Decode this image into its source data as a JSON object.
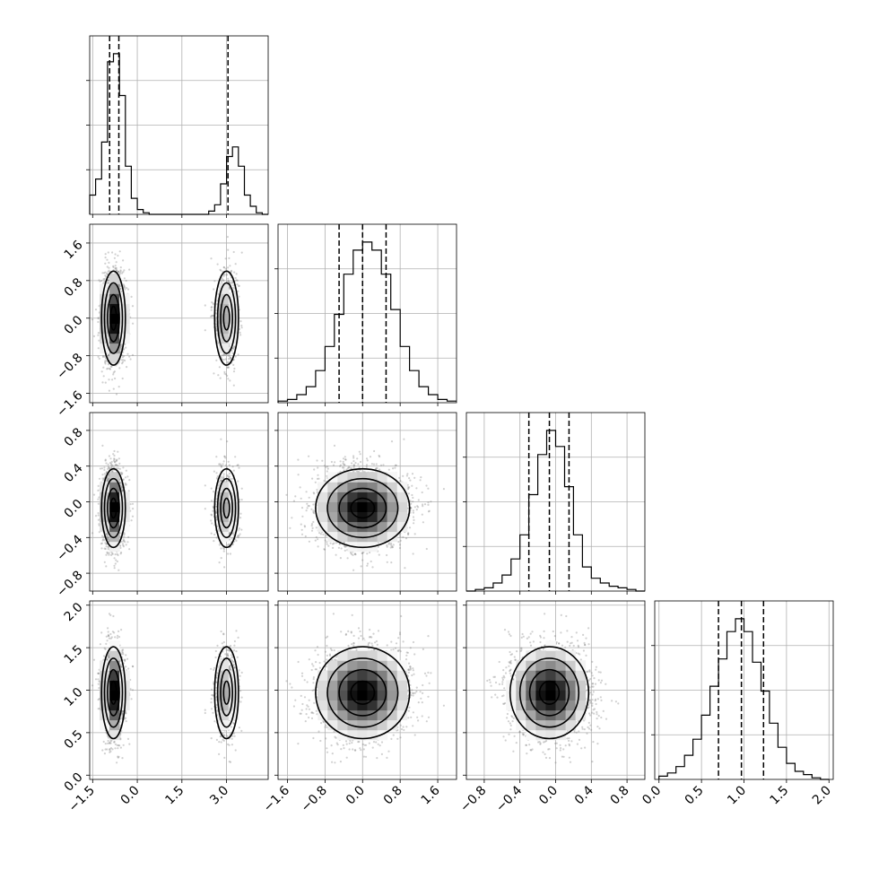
{
  "chart_data": {
    "type": "corner",
    "title": "",
    "grid": true,
    "colors": {
      "line": "#000000",
      "grid": "#b0b0b0",
      "points": "#7a7a7a",
      "density_dark": "#000000",
      "density_light": "#ffffff"
    },
    "parameters": [
      {
        "label": "",
        "range": [
          -1.6,
          4.4
        ],
        "ticks": [
          -1.5,
          0.0,
          1.5,
          3.0
        ],
        "tick_labels": [
          "−1.5",
          "0.0",
          "1.5",
          "3.0"
        ],
        "quantiles": [
          -0.93,
          -0.62,
          3.05
        ],
        "components": [
          {
            "weight": 0.7,
            "mean": -0.8,
            "sd": 0.2
          },
          {
            "weight": 0.3,
            "mean": 3.0,
            "sd": 0.2
          }
        ],
        "histogram": {
          "edges": [
            -1.6,
            -1.4,
            -1.2,
            -1.0,
            -0.8,
            -0.6,
            -0.4,
            -0.2,
            0.0,
            0.2,
            0.4,
            0.6,
            0.8,
            1.0,
            1.2,
            1.4,
            1.6,
            1.8,
            2.0,
            2.2,
            2.4,
            2.6,
            2.8,
            3.0,
            3.2,
            3.4,
            3.6,
            3.8,
            4.0,
            4.2,
            4.4
          ],
          "counts": [
            0.12,
            0.22,
            0.45,
            0.95,
            1.0,
            0.74,
            0.3,
            0.1,
            0.03,
            0.01,
            0.0,
            0.0,
            0.0,
            0.0,
            0.0,
            0.0,
            0.0,
            0.0,
            0.0,
            0.0,
            0.02,
            0.06,
            0.19,
            0.36,
            0.42,
            0.3,
            0.12,
            0.05,
            0.01,
            0.0
          ]
        }
      },
      {
        "label": "",
        "range": [
          -1.8,
          2.0
        ],
        "ticks": [
          -1.6,
          -0.8,
          0.0,
          0.8,
          1.6
        ],
        "tick_labels": [
          "−1.6",
          "−0.8",
          "0.0",
          "0.8",
          "1.6"
        ],
        "quantiles": [
          -0.5,
          0.0,
          0.5
        ],
        "components": [
          {
            "weight": 1.0,
            "mean": 0.0,
            "sd": 0.5
          }
        ],
        "histogram": {
          "edges": [
            -1.8,
            -1.6,
            -1.4,
            -1.2,
            -1.0,
            -0.8,
            -0.6,
            -0.4,
            -0.2,
            0.0,
            0.2,
            0.4,
            0.6,
            0.8,
            1.0,
            1.2,
            1.4,
            1.6,
            1.8,
            2.0
          ],
          "counts": [
            0.01,
            0.02,
            0.05,
            0.1,
            0.2,
            0.35,
            0.55,
            0.8,
            0.95,
            1.0,
            0.95,
            0.8,
            0.58,
            0.35,
            0.2,
            0.1,
            0.05,
            0.02,
            0.01
          ]
        }
      },
      {
        "label": "",
        "range": [
          -1.0,
          1.0
        ],
        "ticks": [
          -0.8,
          -0.4,
          0.0,
          0.4,
          0.8
        ],
        "tick_labels": [
          "−0.8",
          "−0.4",
          "0.0",
          "0.4",
          "0.8"
        ],
        "quantiles": [
          -0.3,
          -0.07,
          0.15
        ],
        "components": [
          {
            "weight": 1.0,
            "mean": -0.07,
            "sd": 0.22
          }
        ],
        "histogram": {
          "edges": [
            -1.0,
            -0.9,
            -0.8,
            -0.7,
            -0.6,
            -0.5,
            -0.4,
            -0.3,
            -0.2,
            -0.1,
            0.0,
            0.1,
            0.2,
            0.3,
            0.4,
            0.5,
            0.6,
            0.7,
            0.8,
            0.9,
            1.0
          ],
          "counts": [
            0.0,
            0.01,
            0.02,
            0.05,
            0.1,
            0.2,
            0.35,
            0.6,
            0.85,
            1.0,
            0.9,
            0.65,
            0.35,
            0.15,
            0.08,
            0.05,
            0.03,
            0.02,
            0.01,
            0.0
          ]
        }
      },
      {
        "label": "",
        "range": [
          -0.05,
          2.05
        ],
        "ticks": [
          0.0,
          0.5,
          1.0,
          1.5,
          2.0
        ],
        "tick_labels": [
          "0.0",
          "0.5",
          "1.0",
          "1.5",
          "2.0"
        ],
        "quantiles": [
          0.7,
          0.97,
          1.23
        ],
        "components": [
          {
            "weight": 1.0,
            "mean": 0.97,
            "sd": 0.27
          }
        ],
        "histogram": {
          "edges": [
            0.0,
            0.1,
            0.2,
            0.3,
            0.4,
            0.5,
            0.6,
            0.7,
            0.8,
            0.9,
            1.0,
            1.1,
            1.2,
            1.3,
            1.4,
            1.5,
            1.6,
            1.7,
            1.8,
            1.9,
            2.0
          ],
          "counts": [
            0.02,
            0.04,
            0.08,
            0.15,
            0.25,
            0.4,
            0.58,
            0.75,
            0.92,
            1.0,
            0.92,
            0.73,
            0.55,
            0.35,
            0.2,
            0.1,
            0.05,
            0.03,
            0.01,
            0.0
          ]
        }
      }
    ]
  }
}
